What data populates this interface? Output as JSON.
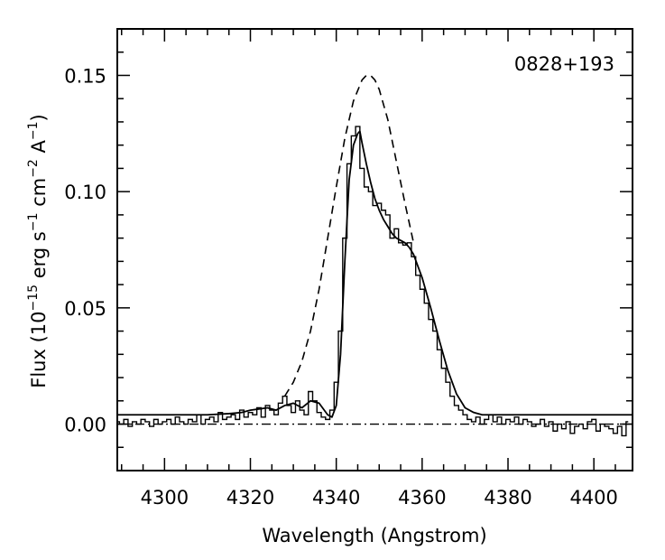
{
  "chart_data": {
    "type": "line",
    "title": "",
    "annotation": "0828+193",
    "xlabel": "Wavelength (Angstrom)",
    "ylabel": {
      "prefix": "Flux (10",
      "exp1": "−15",
      "mid1": " erg s",
      "exp2": "−1",
      "mid2": " cm",
      "exp3": "−2",
      "mid3": "  A",
      "exp4": "−1",
      "suffix": ")"
    },
    "xlim": [
      4289,
      4409
    ],
    "ylim": [
      -0.02,
      0.17
    ],
    "xticks_major": [
      4300,
      4320,
      4340,
      4360,
      4380,
      4400
    ],
    "xtick_labels": [
      "4300",
      "4320",
      "4340",
      "4360",
      "4380",
      "4400"
    ],
    "xticks_minor_step": 5,
    "yticks_major": [
      0.0,
      0.05,
      0.1,
      0.15
    ],
    "ytick_labels": [
      "0.00",
      "0.05",
      "0.10",
      "0.15"
    ],
    "yticks_minor_step": 0.01,
    "grid": false,
    "series": [
      {
        "style": "steps-solid",
        "x": [
          4289,
          4290,
          4291,
          4292,
          4293,
          4294,
          4295,
          4296,
          4297,
          4298,
          4299,
          4300,
          4301,
          4302,
          4303,
          4304,
          4305,
          4306,
          4307,
          4308,
          4309,
          4310,
          4311,
          4312,
          4313,
          4314,
          4315,
          4316,
          4317,
          4318,
          4319,
          4320,
          4321,
          4322,
          4323,
          4324,
          4325,
          4326,
          4327,
          4328,
          4329,
          4330,
          4331,
          4332,
          4333,
          4334,
          4335,
          4336,
          4337,
          4338,
          4339,
          4340,
          4341,
          4342,
          4343,
          4344,
          4345,
          4346,
          4347,
          4348,
          4349,
          4350,
          4351,
          4352,
          4353,
          4354,
          4355,
          4356,
          4357,
          4358,
          4359,
          4360,
          4361,
          4362,
          4363,
          4364,
          4365,
          4366,
          4367,
          4368,
          4369,
          4370,
          4371,
          4372,
          4373,
          4374,
          4375,
          4376,
          4377,
          4378,
          4379,
          4380,
          4381,
          4382,
          4383,
          4384,
          4385,
          4386,
          4387,
          4388,
          4389,
          4390,
          4391,
          4392,
          4393,
          4394,
          4395,
          4396,
          4397,
          4398,
          4399,
          4400,
          4401,
          4402,
          4403,
          4404,
          4405,
          4406,
          4407,
          4408
        ],
        "y": [
          0.001,
          0.0,
          0.002,
          -0.001,
          0.001,
          0.0,
          0.002,
          0.001,
          -0.001,
          0.002,
          0.0,
          0.001,
          0.002,
          0.0,
          0.003,
          0.001,
          0.0,
          0.002,
          0.001,
          0.004,
          0.0,
          0.002,
          0.003,
          0.001,
          0.005,
          0.002,
          0.003,
          0.004,
          0.002,
          0.006,
          0.003,
          0.005,
          0.004,
          0.007,
          0.003,
          0.008,
          0.006,
          0.004,
          0.009,
          0.012,
          0.008,
          0.005,
          0.01,
          0.006,
          0.004,
          0.014,
          0.01,
          0.005,
          0.003,
          0.002,
          0.006,
          0.018,
          0.04,
          0.08,
          0.112,
          0.124,
          0.128,
          0.11,
          0.102,
          0.1,
          0.094,
          0.095,
          0.092,
          0.09,
          0.08,
          0.084,
          0.078,
          0.077,
          0.078,
          0.072,
          0.064,
          0.058,
          0.052,
          0.045,
          0.04,
          0.032,
          0.024,
          0.018,
          0.012,
          0.008,
          0.006,
          0.004,
          0.002,
          0.001,
          0.003,
          0.0,
          0.002,
          0.004,
          0.001,
          0.003,
          0.0,
          0.002,
          0.001,
          0.003,
          0.0,
          0.002,
          0.001,
          -0.001,
          0.0,
          0.002,
          -0.001,
          0.001,
          -0.003,
          0.0,
          -0.002,
          0.001,
          -0.004,
          -0.001,
          0.0,
          -0.002,
          0.001,
          0.002,
          -0.003,
          0.0,
          -0.001,
          -0.002,
          -0.004,
          -0.001,
          -0.005,
          0.001
        ]
      },
      {
        "style": "smooth-solid",
        "x": [
          4289,
          4300,
          4310,
          4315,
          4318,
          4320,
          4322,
          4324,
          4326,
          4328,
          4330,
          4332,
          4334,
          4336,
          4338,
          4339,
          4340,
          4341,
          4342,
          4343,
          4344,
          4345,
          4345.5,
          4346,
          4347,
          4348,
          4349,
          4350,
          4351,
          4352,
          4353,
          4354,
          4355,
          4356,
          4357,
          4358,
          4360,
          4362,
          4364,
          4366,
          4368,
          4370,
          4372,
          4374,
          4380,
          4390,
          4409
        ],
        "y": [
          0.004,
          0.004,
          0.004,
          0.0045,
          0.005,
          0.006,
          0.0065,
          0.007,
          0.006,
          0.008,
          0.009,
          0.007,
          0.01,
          0.009,
          0.004,
          0.003,
          0.008,
          0.03,
          0.07,
          0.105,
          0.12,
          0.125,
          0.126,
          0.121,
          0.112,
          0.104,
          0.097,
          0.092,
          0.088,
          0.085,
          0.082,
          0.08,
          0.079,
          0.078,
          0.076,
          0.073,
          0.063,
          0.05,
          0.036,
          0.023,
          0.013,
          0.007,
          0.005,
          0.004,
          0.004,
          0.004,
          0.004
        ]
      },
      {
        "style": "dashed",
        "x": [
          4328,
          4330,
          4332,
          4334,
          4336,
          4338,
          4340,
          4342,
          4344,
          4346,
          4347,
          4348,
          4349,
          4350,
          4352,
          4354,
          4356,
          4358
        ],
        "y": [
          0.012,
          0.018,
          0.027,
          0.04,
          0.058,
          0.08,
          0.102,
          0.123,
          0.139,
          0.148,
          0.15,
          0.15,
          0.148,
          0.144,
          0.131,
          0.113,
          0.095,
          0.078
        ]
      },
      {
        "style": "dash-dot",
        "x": [
          4289,
          4409
        ],
        "y": [
          0.0,
          0.0
        ]
      }
    ]
  }
}
